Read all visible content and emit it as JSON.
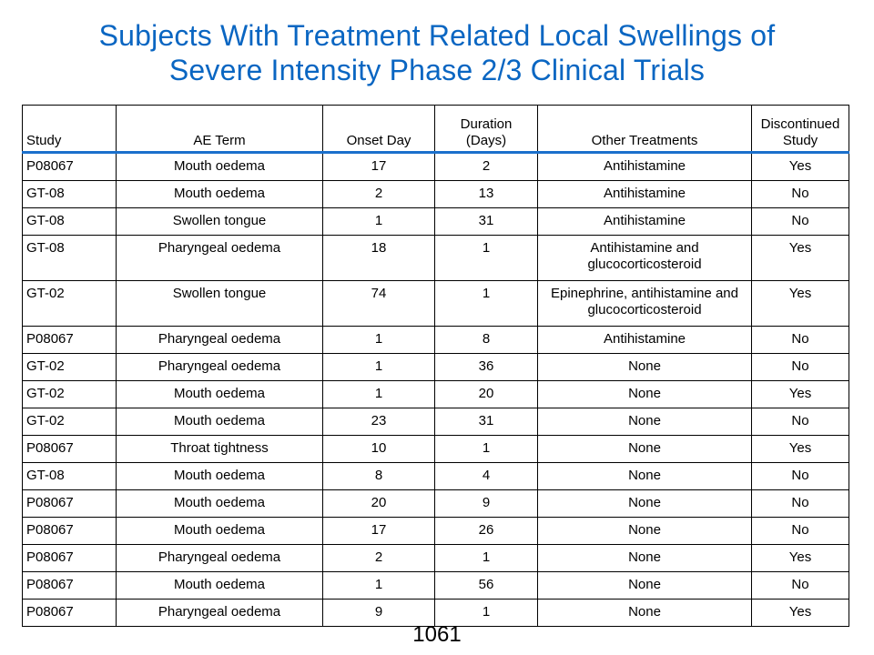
{
  "title": {
    "line1": "Subjects With Treatment Related Local Swellings of",
    "line2": "Severe Intensity Phase 2/3 Clinical Trials"
  },
  "table": {
    "headers": {
      "study": "Study",
      "ae_term": "AE Term",
      "onset_day": "Onset Day",
      "duration_line1": "Duration",
      "duration_line2": "(Days)",
      "other_treatments": "Other Treatments",
      "discontinued_line1": "Discontinued",
      "discontinued_line2": "Study"
    },
    "rows": [
      {
        "study": "P08067",
        "ae": "Mouth oedema",
        "onset": "17",
        "duration": "2",
        "treatment": "Antihistamine",
        "discontinued": "Yes"
      },
      {
        "study": "GT-08",
        "ae": "Mouth oedema",
        "onset": "2",
        "duration": "13",
        "treatment": "Antihistamine",
        "discontinued": "No"
      },
      {
        "study": "GT-08",
        "ae": "Swollen tongue",
        "onset": "1",
        "duration": "31",
        "treatment": "Antihistamine",
        "discontinued": "No"
      },
      {
        "study": "GT-08",
        "ae": "Pharyngeal oedema",
        "onset": "18",
        "duration": "1",
        "treatment": "Antihistamine and glucocorticosteroid",
        "discontinued": "Yes"
      },
      {
        "study": "GT-02",
        "ae": "Swollen tongue",
        "onset": "74",
        "duration": "1",
        "treatment": "Epinephrine, antihistamine and glucocorticosteroid",
        "discontinued": "Yes"
      },
      {
        "study": "P08067",
        "ae": "Pharyngeal oedema",
        "onset": "1",
        "duration": "8",
        "treatment": "Antihistamine",
        "discontinued": "No"
      },
      {
        "study": "GT-02",
        "ae": "Pharyngeal oedema",
        "onset": "1",
        "duration": "36",
        "treatment": "None",
        "discontinued": "No"
      },
      {
        "study": "GT-02",
        "ae": "Mouth oedema",
        "onset": "1",
        "duration": "20",
        "treatment": "None",
        "discontinued": "Yes"
      },
      {
        "study": "GT-02",
        "ae": "Mouth oedema",
        "onset": "23",
        "duration": "31",
        "treatment": "None",
        "discontinued": "No"
      },
      {
        "study": "P08067",
        "ae": "Throat tightness",
        "onset": "10",
        "duration": "1",
        "treatment": "None",
        "discontinued": "Yes"
      },
      {
        "study": "GT-08",
        "ae": "Mouth oedema",
        "onset": "8",
        "duration": "4",
        "treatment": "None",
        "discontinued": "No"
      },
      {
        "study": "P08067",
        "ae": "Mouth oedema",
        "onset": "20",
        "duration": "9",
        "treatment": "None",
        "discontinued": "No"
      },
      {
        "study": "P08067",
        "ae": "Mouth oedema",
        "onset": "17",
        "duration": "26",
        "treatment": "None",
        "discontinued": "No"
      },
      {
        "study": "P08067",
        "ae": "Pharyngeal oedema",
        "onset": "2",
        "duration": "1",
        "treatment": "None",
        "discontinued": "Yes"
      },
      {
        "study": "P08067",
        "ae": "Mouth oedema",
        "onset": "1",
        "duration": "56",
        "treatment": "None",
        "discontinued": "No"
      },
      {
        "study": "P08067",
        "ae": "Pharyngeal oedema",
        "onset": "9",
        "duration": "1",
        "treatment": "None",
        "discontinued": "Yes"
      }
    ]
  },
  "page_number": "1061",
  "colors": {
    "title": "#0a66c2",
    "header_rule": "#1a6fcc"
  }
}
